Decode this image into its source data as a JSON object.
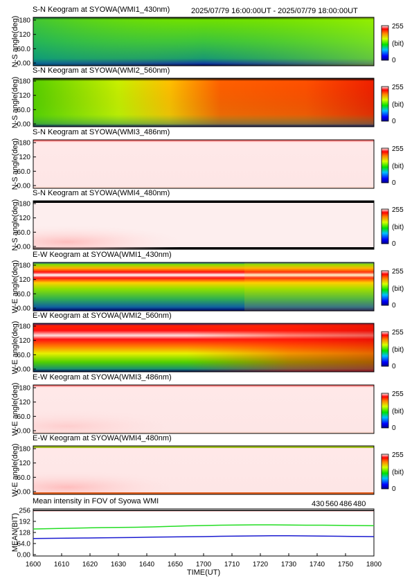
{
  "header": {
    "time_range": "2025/07/79 16:00:00UT - 2025/07/79 18:00:00UT"
  },
  "colors": {
    "blue_line": "#1a1ad0",
    "green_line": "#22dd22",
    "red_line": "#dd1a1a",
    "black_line": "#000000"
  },
  "chart_data": [
    {
      "type": "heatmap",
      "title": "S-N Keogram at SYOWA(WMI1_430nm)",
      "ylabel": "N-S angle(deg)",
      "yticks": [
        "180",
        "120",
        "60.0",
        "0.00"
      ],
      "colorbar": {
        "max": "255",
        "unit": "(bit)",
        "min": "0"
      },
      "pattern": "green_flat",
      "scale": "0-255 bit"
    },
    {
      "type": "heatmap",
      "title": "S-N Keogram at SYOWA(WMI2_560nm)",
      "ylabel": "N-S angle(deg)",
      "yticks": [
        "180",
        "120",
        "60.0",
        "0.00"
      ],
      "colorbar": {
        "max": "255",
        "unit": "(bit)",
        "min": "0"
      },
      "pattern": "green_to_red",
      "scale": "0-255 bit"
    },
    {
      "type": "heatmap",
      "title": "S-N Keogram at SYOWA(WMI3_486nm)",
      "ylabel": "N-S angle(deg)",
      "yticks": [
        "180",
        "120",
        "60.0",
        "0.00"
      ],
      "colorbar": {
        "max": "255",
        "unit": "(bit)",
        "min": "0"
      },
      "pattern": "saturated",
      "scale": "0-255 bit"
    },
    {
      "type": "heatmap",
      "title": "S-N Keogram at SYOWA(WMI4_480nm)",
      "ylabel": "N-S angle(deg)",
      "yticks": [
        "180",
        "120",
        "60.0",
        "0.00"
      ],
      "colorbar": {
        "max": "255",
        "unit": "(bit)",
        "min": "0"
      },
      "pattern": "saturated_black_edges",
      "scale": "0-255 bit"
    },
    {
      "type": "heatmap",
      "title": "E-W Keogram at SYOWA(WMI1_430nm)",
      "ylabel": "W-E angle(deg)",
      "yticks": [
        "180",
        "120",
        "60.0",
        "0.00"
      ],
      "colorbar": {
        "max": "255",
        "unit": "(bit)",
        "min": "0"
      },
      "pattern": "arc_430",
      "scale": "0-255 bit"
    },
    {
      "type": "heatmap",
      "title": "E-W Keogram at SYOWA(WMI2_560nm)",
      "ylabel": "W-E angle(deg)",
      "yticks": [
        "180",
        "120",
        "60.0",
        "0.00"
      ],
      "colorbar": {
        "max": "255",
        "unit": "(bit)",
        "min": "0"
      },
      "pattern": "arc_560",
      "scale": "0-255 bit"
    },
    {
      "type": "heatmap",
      "title": "E-W Keogram at SYOWA(WMI3_486nm)",
      "ylabel": "W-E angle(deg)",
      "yticks": [
        "180",
        "120",
        "60.0",
        "0.00"
      ],
      "colorbar": {
        "max": "255",
        "unit": "(bit)",
        "min": "0"
      },
      "pattern": "saturated_low_patch",
      "scale": "0-255 bit"
    },
    {
      "type": "heatmap",
      "title": "E-W Keogram at SYOWA(WMI4_480nm)",
      "ylabel": "W-E angle(deg)",
      "yticks": [
        "180",
        "120",
        "60.0",
        "0.00"
      ],
      "colorbar": {
        "max": "255",
        "unit": "(bit)",
        "min": "0"
      },
      "pattern": "saturated_low_patch_strong",
      "scale": "0-255 bit"
    },
    {
      "type": "line",
      "title": "Mean intensity in FOV of Syowa WMI",
      "ylabel": "MEAN(BIT)",
      "xlabel": "TIME(UT)",
      "yticks": [
        "256",
        "192",
        "128",
        "64.0",
        "0.00"
      ],
      "ylim": [
        0,
        256
      ],
      "legend": [
        {
          "label": "430",
          "color": "#1a1ad0"
        },
        {
          "label": "560",
          "color": "#22dd22"
        },
        {
          "label": "486",
          "color": "#dd1a1a"
        },
        {
          "label": "480",
          "color": "#000000"
        }
      ],
      "x": [
        1600,
        1610,
        1620,
        1630,
        1640,
        1650,
        1660,
        1670,
        1680,
        1690,
        1700,
        1710,
        1720,
        1730,
        1740,
        1750,
        1760,
        1770,
        1780,
        1790,
        1800
      ],
      "series": [
        {
          "name": "430",
          "values": [
            93,
            94,
            95,
            96,
            97,
            98,
            99,
            101,
            102,
            103,
            104,
            106,
            107,
            108,
            109,
            109,
            108,
            107,
            106,
            105,
            104
          ]
        },
        {
          "name": "560",
          "values": [
            148,
            150,
            152,
            154,
            156,
            157,
            158,
            160,
            163,
            166,
            168,
            170,
            171,
            172,
            172,
            171,
            170,
            170,
            169,
            168,
            167
          ]
        },
        {
          "name": "486",
          "values": [
            254,
            254,
            254,
            254,
            254,
            254,
            254,
            254,
            254,
            254,
            254,
            254,
            254,
            254,
            254,
            254,
            254,
            254,
            254,
            254,
            254
          ]
        },
        {
          "name": "480",
          "values": [
            255,
            255,
            255,
            255,
            255,
            255,
            255,
            255,
            255,
            255,
            255,
            255,
            255,
            255,
            255,
            255,
            255,
            255,
            255,
            255,
            255
          ]
        }
      ],
      "xticks": [
        "1600",
        "1610",
        "1620",
        "1630",
        "1640",
        "1650",
        "1700",
        "1710",
        "1720",
        "1730",
        "1740",
        "1750",
        "1800"
      ]
    }
  ]
}
